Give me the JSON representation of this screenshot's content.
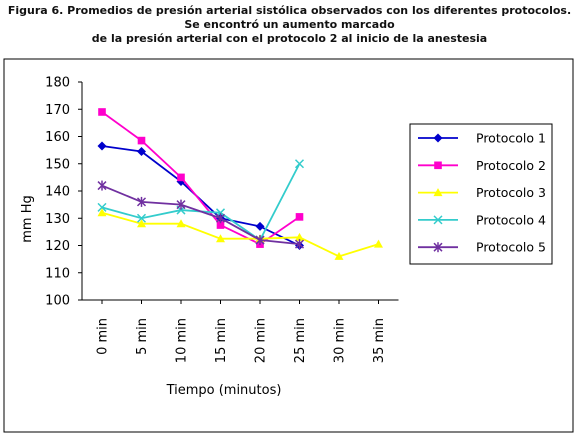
{
  "caption": {
    "line1": "Figura 6. Promedios de presión arterial sistólica observados con los diferentes protocolos.",
    "line2": "Se encontró un aumento marcado",
    "line3": "de la presión arterial con el protocolo 2 al inicio de la anestesia"
  },
  "chart_data": {
    "type": "line",
    "title": "",
    "xlabel": "Tiempo (minutos)",
    "ylabel": "mm Hg",
    "categories": [
      "0 min",
      "5 min",
      "10 min",
      "15 min",
      "20 min",
      "25 min",
      "30 min",
      "35 min"
    ],
    "ylim": [
      100,
      180
    ],
    "yticks": [
      100,
      110,
      120,
      130,
      140,
      150,
      160,
      170,
      180
    ],
    "grid": false,
    "legend_position": "right",
    "series": [
      {
        "name": "Protocolo 1",
        "color": "#0000cc",
        "marker": "diamond",
        "values": [
          156.5,
          154.5,
          143.5,
          130,
          127,
          120,
          null,
          null
        ]
      },
      {
        "name": "Protocolo 2",
        "color": "#ff00cc",
        "marker": "square",
        "values": [
          169,
          158.5,
          145,
          127.5,
          120.5,
          130.5,
          null,
          null
        ]
      },
      {
        "name": "Protocolo 3",
        "color": "#ffff00",
        "marker": "triangle",
        "values": [
          132,
          128,
          128,
          122.5,
          122.5,
          123,
          116,
          120.5
        ]
      },
      {
        "name": "Protocolo 4",
        "color": "#33cccc",
        "marker": "x",
        "values": [
          134,
          130,
          133,
          132,
          122,
          150,
          null,
          null
        ]
      },
      {
        "name": "Protocolo 5",
        "color": "#7030a0",
        "marker": "star",
        "values": [
          142,
          136,
          135,
          130,
          122,
          120.5,
          null,
          null
        ]
      }
    ]
  }
}
